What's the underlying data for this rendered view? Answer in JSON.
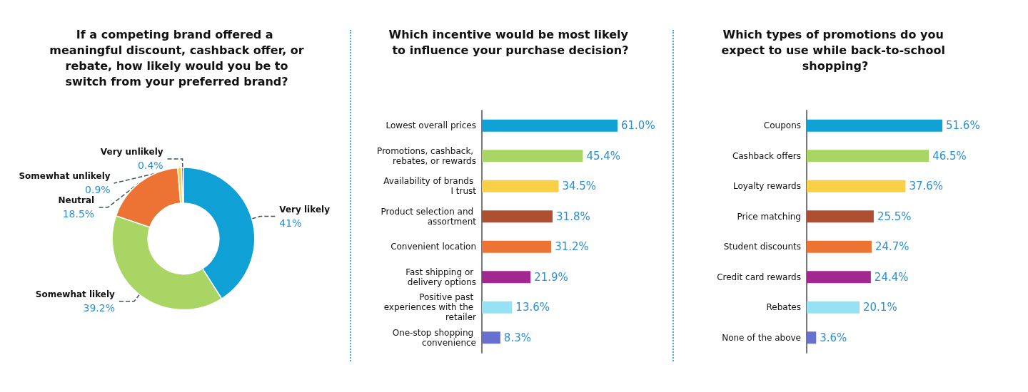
{
  "chart_data": [
    {
      "type": "donut",
      "title": "If a competing brand offered a meaningful discount, cashback offer, or rebate, how likely would you be to switch from your preferred brand?",
      "categories": [
        "Very likely",
        "Somewhat likely",
        "Neutral",
        "Somewhat unlikely",
        "Very unlikely"
      ],
      "values": [
        41,
        39.2,
        18.5,
        0.9,
        0.4
      ],
      "value_labels": [
        "41%",
        "39.2%",
        "18.5%",
        "0.9%",
        "0.4%"
      ],
      "colors": [
        "#0fa0d6",
        "#a8d563",
        "#ec7333",
        "#f9cf47",
        "#a0288f"
      ],
      "legend": false
    },
    {
      "type": "bar",
      "orientation": "horizontal",
      "title": "Which incentive would be most likely to influence your purchase decision?",
      "categories": [
        "Lowest overall prices",
        "Promotions, cashback, rebates, or rewards",
        "Availability of brands I trust",
        "Product selection and assortment",
        "Convenient location",
        "Fast shipping or delivery options",
        "Positive past experiences with the retailer",
        "One-stop shopping convenience"
      ],
      "values": [
        61.0,
        45.4,
        34.5,
        31.8,
        31.2,
        21.9,
        13.6,
        8.3
      ],
      "value_labels": [
        "61.0%",
        "45.4%",
        "34.5%",
        "31.8%",
        "31.2%",
        "21.9%",
        "13.6%",
        "8.3%"
      ],
      "colors": [
        "#0fa0d6",
        "#a8d563",
        "#f9cf47",
        "#ae4f31",
        "#ec7333",
        "#a0288f",
        "#97e1f5",
        "#6670cf"
      ],
      "tick_labels": "y",
      "grid": false,
      "legend": false
    },
    {
      "type": "bar",
      "orientation": "horizontal",
      "title": "Which types of promotions do you expect to use while back-to-school shopping?",
      "categories": [
        "Coupons",
        "Cashback offers",
        "Loyalty rewards",
        "Price matching",
        "Student discounts",
        "Credit card rewards",
        "Rebates",
        "None of the above"
      ],
      "values": [
        51.6,
        46.5,
        37.6,
        25.5,
        24.7,
        24.4,
        20.1,
        3.6
      ],
      "value_labels": [
        "51.6%",
        "46.5%",
        "37.6%",
        "25.5%",
        "24.7%",
        "24.4%",
        "20.1%",
        "3.6%"
      ],
      "colors": [
        "#0fa0d6",
        "#a8d563",
        "#f9cf47",
        "#ae4f31",
        "#ec7333",
        "#a0288f",
        "#97e1f5",
        "#6670cf"
      ],
      "tick_labels": "y",
      "grid": false,
      "legend": false
    }
  ]
}
